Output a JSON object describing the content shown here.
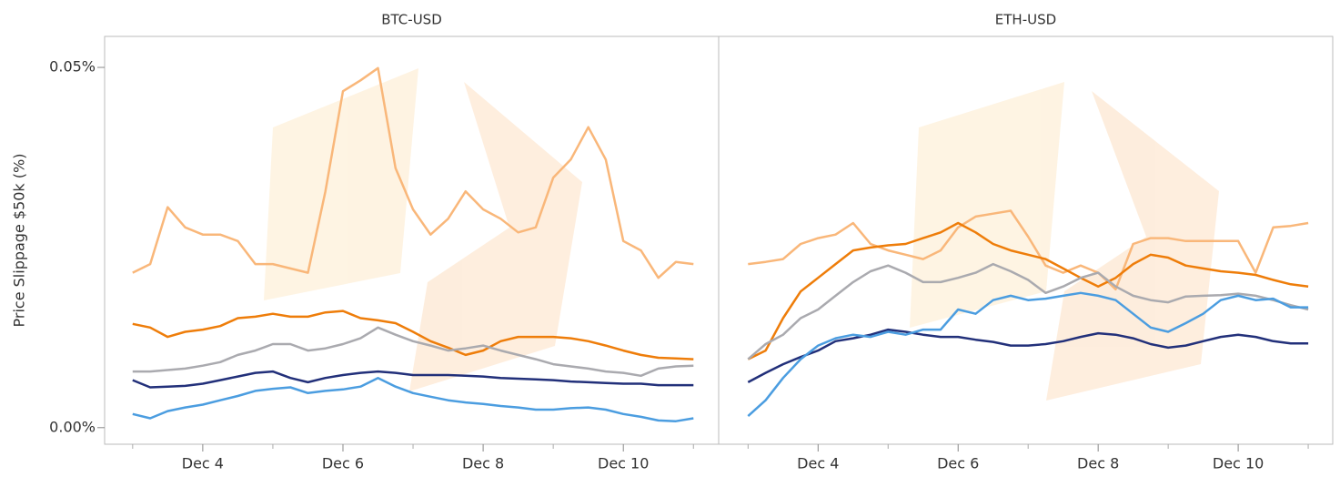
{
  "chart_data": [
    {
      "type": "line",
      "title": "BTC-USD",
      "ylabel": "Price Slippage $50k (%)",
      "x": [
        3,
        3.25,
        3.5,
        3.75,
        4,
        4.25,
        4.5,
        4.75,
        5,
        5.25,
        5.5,
        5.75,
        6,
        6.25,
        6.5,
        6.75,
        7,
        7.25,
        7.5,
        7.75,
        8,
        8.25,
        8.5,
        8.75,
        9,
        9.25,
        9.5,
        9.75,
        10,
        10.25,
        10.5,
        10.75,
        11
      ],
      "xlim": [
        2.6,
        11.36
      ],
      "xticks": [
        {
          "value": 4,
          "label": "Dec 4"
        },
        {
          "value": 6,
          "label": "Dec 6"
        },
        {
          "value": 8,
          "label": "Dec 8"
        },
        {
          "value": 10,
          "label": "Dec 10"
        }
      ],
      "xminor_ticks": [
        3,
        5,
        7,
        9,
        11
      ],
      "ylim": [
        -0.0023,
        0.0543
      ],
      "yticks": [
        {
          "value": 0,
          "label": "0.00%"
        },
        {
          "value": 0.05,
          "label": "0.05%"
        }
      ],
      "series": [
        {
          "color": "#f9b77a",
          "values": [
            0.0215,
            0.0227,
            0.0306,
            0.0278,
            0.0268,
            0.0268,
            0.0259,
            0.0227,
            0.0227,
            0.0221,
            0.0215,
            0.0328,
            0.0467,
            0.0482,
            0.0499,
            0.036,
            0.0303,
            0.0268,
            0.029,
            0.0328,
            0.0303,
            0.029,
            0.0271,
            0.0278,
            0.0347,
            0.0372,
            0.0417,
            0.0372,
            0.0259,
            0.0246,
            0.0208,
            0.023,
            0.0227
          ]
        },
        {
          "color": "#ee7d0a",
          "values": [
            0.0144,
            0.0139,
            0.0126,
            0.0133,
            0.0136,
            0.0141,
            0.0152,
            0.0154,
            0.0158,
            0.0154,
            0.0154,
            0.016,
            0.0162,
            0.0152,
            0.0149,
            0.0145,
            0.0133,
            0.012,
            0.0111,
            0.0101,
            0.0107,
            0.012,
            0.0126,
            0.0126,
            0.0126,
            0.0124,
            0.012,
            0.0114,
            0.0107,
            0.0101,
            0.0097,
            0.0096,
            0.0095
          ]
        },
        {
          "color": "#aaaaaf",
          "values": [
            0.0078,
            0.0078,
            0.008,
            0.0082,
            0.0086,
            0.0091,
            0.0101,
            0.0107,
            0.0116,
            0.0116,
            0.0107,
            0.011,
            0.0116,
            0.0124,
            0.0139,
            0.0129,
            0.012,
            0.0114,
            0.0107,
            0.011,
            0.0114,
            0.0107,
            0.0101,
            0.0095,
            0.0088,
            0.0085,
            0.0082,
            0.0078,
            0.0076,
            0.0072,
            0.0082,
            0.0085,
            0.0086
          ]
        },
        {
          "color": "#22307a",
          "values": [
            0.0066,
            0.0056,
            0.0057,
            0.0058,
            0.0061,
            0.0066,
            0.0071,
            0.0076,
            0.0078,
            0.0069,
            0.0063,
            0.0069,
            0.0073,
            0.0076,
            0.0078,
            0.0076,
            0.0073,
            0.0073,
            0.0073,
            0.0072,
            0.0071,
            0.0069,
            0.0068,
            0.0067,
            0.0066,
            0.0064,
            0.0063,
            0.0062,
            0.0061,
            0.0061,
            0.0059,
            0.0059,
            0.0059
          ]
        },
        {
          "color": "#4b9de0",
          "values": [
            0.0019,
            0.0013,
            0.0023,
            0.0028,
            0.0032,
            0.0038,
            0.0044,
            0.0051,
            0.0054,
            0.0056,
            0.0048,
            0.0051,
            0.0053,
            0.0057,
            0.0069,
            0.0057,
            0.0048,
            0.0043,
            0.0038,
            0.0035,
            0.0033,
            0.003,
            0.0028,
            0.0025,
            0.0025,
            0.0027,
            0.0028,
            0.0025,
            0.0019,
            0.0015,
            0.001,
            0.0009,
            0.0013
          ]
        }
      ]
    },
    {
      "type": "line",
      "title": "ETH-USD",
      "x": [
        3,
        3.25,
        3.5,
        3.75,
        4,
        4.25,
        4.5,
        4.75,
        5,
        5.25,
        5.5,
        5.75,
        6,
        6.25,
        6.5,
        6.75,
        7,
        7.25,
        7.5,
        7.75,
        8,
        8.25,
        8.5,
        8.75,
        9,
        9.25,
        9.5,
        9.75,
        10,
        10.25,
        10.5,
        10.75,
        11
      ],
      "xlim": [
        2.58,
        11.35
      ],
      "xticks": [
        {
          "value": 4,
          "label": "Dec 4"
        },
        {
          "value": 6,
          "label": "Dec 6"
        },
        {
          "value": 8,
          "label": "Dec 8"
        },
        {
          "value": 10,
          "label": "Dec 10"
        }
      ],
      "xminor_ticks": [
        3,
        5,
        7,
        9,
        11
      ],
      "ylim": [
        -0.0023,
        0.0543
      ],
      "series": [
        {
          "color": "#f9b77a",
          "values": [
            0.0227,
            0.023,
            0.0234,
            0.0255,
            0.0263,
            0.0268,
            0.0284,
            0.0255,
            0.0246,
            0.024,
            0.0234,
            0.0246,
            0.0278,
            0.0293,
            0.0297,
            0.0301,
            0.0265,
            0.0225,
            0.0215,
            0.0225,
            0.0215,
            0.0192,
            0.0255,
            0.0263,
            0.0263,
            0.0259,
            0.0259,
            0.0259,
            0.0259,
            0.0215,
            0.0278,
            0.028,
            0.0284
          ]
        },
        {
          "color": "#ee7d0a",
          "values": [
            0.0095,
            0.0107,
            0.0152,
            0.0189,
            0.0208,
            0.0227,
            0.0246,
            0.025,
            0.0253,
            0.0255,
            0.0263,
            0.0271,
            0.0284,
            0.0271,
            0.0255,
            0.0246,
            0.024,
            0.0234,
            0.0221,
            0.0208,
            0.0196,
            0.0208,
            0.0227,
            0.024,
            0.0236,
            0.0225,
            0.0221,
            0.0217,
            0.0215,
            0.0212,
            0.0205,
            0.0199,
            0.0196
          ]
        },
        {
          "color": "#aaaaaf",
          "values": [
            0.0095,
            0.0116,
            0.0129,
            0.0152,
            0.0164,
            0.0183,
            0.0202,
            0.0217,
            0.0225,
            0.0215,
            0.0202,
            0.0202,
            0.0208,
            0.0215,
            0.0227,
            0.0217,
            0.0205,
            0.0187,
            0.0196,
            0.0208,
            0.0215,
            0.0196,
            0.0183,
            0.0177,
            0.0174,
            0.0182,
            0.0183,
            0.0184,
            0.0186,
            0.0183,
            0.0177,
            0.017,
            0.0164
          ]
        },
        {
          "color": "#22307a",
          "values": [
            0.0063,
            0.0076,
            0.0088,
            0.0098,
            0.0107,
            0.012,
            0.0124,
            0.0129,
            0.0136,
            0.0133,
            0.0129,
            0.0126,
            0.0126,
            0.0122,
            0.0119,
            0.0114,
            0.0114,
            0.0116,
            0.012,
            0.0126,
            0.0131,
            0.0129,
            0.0124,
            0.0116,
            0.0111,
            0.0114,
            0.012,
            0.0126,
            0.0129,
            0.0126,
            0.012,
            0.0117,
            0.0117
          ]
        },
        {
          "color": "#4b9de0",
          "values": [
            0.0016,
            0.0038,
            0.0069,
            0.0095,
            0.0114,
            0.0124,
            0.0129,
            0.0126,
            0.0133,
            0.0129,
            0.0136,
            0.0136,
            0.0164,
            0.0158,
            0.0177,
            0.0183,
            0.0177,
            0.0179,
            0.0183,
            0.0187,
            0.0183,
            0.0177,
            0.0158,
            0.0139,
            0.0133,
            0.0145,
            0.0158,
            0.0177,
            0.0183,
            0.0177,
            0.0179,
            0.0167,
            0.0167
          ]
        }
      ]
    }
  ]
}
